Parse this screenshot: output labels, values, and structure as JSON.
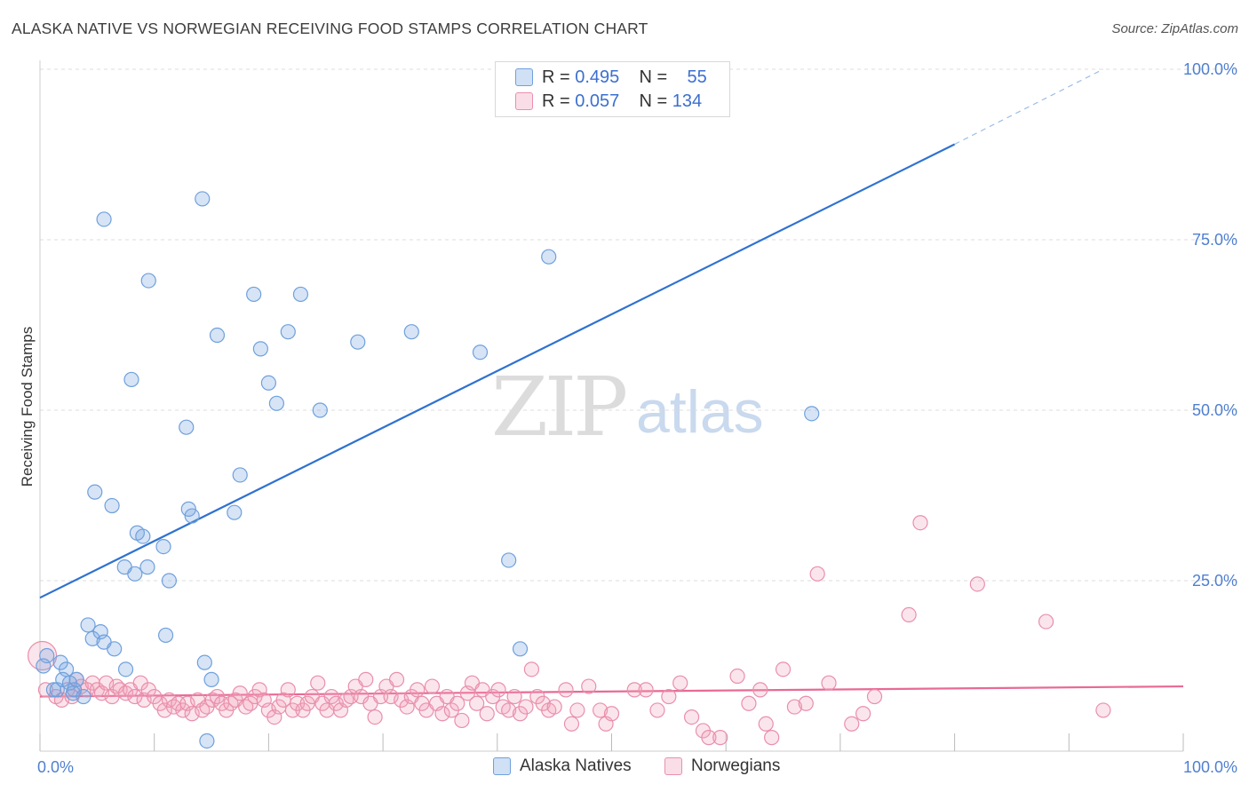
{
  "title": "ALASKA NATIVE VS NORWEGIAN RECEIVING FOOD STAMPS CORRELATION CHART",
  "source": "Source: ZipAtlas.com",
  "watermark": {
    "zip": "ZIP",
    "atlas": "atlas"
  },
  "colors": {
    "blue": "#6fa0dc",
    "blue_fill": "rgba(120,165,225,0.30)",
    "blue_line": "#2f72d0",
    "pink": "#e98fab",
    "pink_fill": "rgba(240,160,185,0.28)",
    "pink_line": "#e86a94",
    "grid": "#dcdcdc",
    "tick": "#4f7fd0"
  },
  "legend": {
    "rows": [
      {
        "r_label": "R =",
        "r_value": "0.495",
        "n_label": "N =",
        "n_value": "55"
      },
      {
        "r_label": "R =",
        "r_value": "0.057",
        "n_label": "N =",
        "n_value": "134"
      }
    ],
    "bottom": [
      {
        "label": "Alaska Natives"
      },
      {
        "label": "Norwegians"
      }
    ]
  },
  "chart_data": {
    "type": "scatter",
    "title": "ALASKA NATIVE VS NORWEGIAN RECEIVING FOOD STAMPS CORRELATION CHART",
    "xlabel": "",
    "ylabel": "Receiving Food Stamps",
    "xlim": [
      0,
      100
    ],
    "ylim": [
      0,
      100
    ],
    "x_tick_labels": [
      "0.0%",
      "100.0%"
    ],
    "y_tick_labels": [
      "25.0%",
      "50.0%",
      "75.0%",
      "100.0%"
    ],
    "y_ticks": [
      25,
      50,
      75,
      100
    ],
    "series": [
      {
        "name": "Alaska Natives",
        "r": 0.495,
        "n": 55,
        "trend": {
          "x0": 0,
          "y0": 22.5,
          "x1": 80,
          "y1": 89,
          "dash_to_x": 93,
          "dash_to_y": 100
        },
        "points": [
          [
            0.3,
            12.5
          ],
          [
            0.6,
            14
          ],
          [
            1.2,
            9
          ],
          [
            1.8,
            13
          ],
          [
            2.3,
            12
          ],
          [
            2.6,
            10
          ],
          [
            3,
            9
          ],
          [
            3.2,
            10.5
          ],
          [
            3.8,
            8
          ],
          [
            4.2,
            18.5
          ],
          [
            4.6,
            16.5
          ],
          [
            5.3,
            17.5
          ],
          [
            5.6,
            16
          ],
          [
            6.5,
            15
          ],
          [
            7.5,
            12
          ],
          [
            4.8,
            38
          ],
          [
            5.6,
            78
          ],
          [
            6.3,
            36
          ],
          [
            8,
            54.5
          ],
          [
            8.5,
            32
          ],
          [
            9,
            31.5
          ],
          [
            8.3,
            26
          ],
          [
            9.4,
            27
          ],
          [
            7.4,
            27
          ],
          [
            9.5,
            69
          ],
          [
            10.8,
            30
          ],
          [
            11,
            17
          ],
          [
            11.3,
            25
          ],
          [
            12.8,
            47.5
          ],
          [
            13,
            35.5
          ],
          [
            13.3,
            34.5
          ],
          [
            14.2,
            81
          ],
          [
            14.4,
            13
          ],
          [
            15.5,
            61
          ],
          [
            15,
            10.5
          ],
          [
            14.6,
            1.5
          ],
          [
            17,
            35
          ],
          [
            17.5,
            40.5
          ],
          [
            18.7,
            67
          ],
          [
            19.3,
            59
          ],
          [
            20,
            54
          ],
          [
            20.7,
            51
          ],
          [
            21.7,
            61.5
          ],
          [
            22.8,
            67
          ],
          [
            24.5,
            50
          ],
          [
            27.8,
            60
          ],
          [
            32.5,
            61.5
          ],
          [
            38.5,
            58.5
          ],
          [
            42,
            15
          ],
          [
            41,
            28
          ],
          [
            44.5,
            72.5
          ],
          [
            67.5,
            49.5
          ],
          [
            1.5,
            9
          ],
          [
            2,
            10.5
          ],
          [
            2.9,
            8.5
          ]
        ]
      },
      {
        "name": "Norwegians",
        "r": 0.057,
        "n": 134,
        "trend": {
          "x0": 0,
          "y0": 8,
          "x1": 100,
          "y1": 9.5
        },
        "points": [
          [
            0.2,
            14
          ],
          [
            0.5,
            9
          ],
          [
            1.4,
            8
          ],
          [
            1.9,
            7.5
          ],
          [
            2.4,
            9
          ],
          [
            2.8,
            8
          ],
          [
            3.2,
            10.5
          ],
          [
            3.6,
            9.5
          ],
          [
            4.1,
            9
          ],
          [
            4.6,
            10
          ],
          [
            5,
            9
          ],
          [
            5.4,
            8.5
          ],
          [
            5.8,
            10
          ],
          [
            6.3,
            8
          ],
          [
            6.7,
            9.5
          ],
          [
            7,
            9
          ],
          [
            7.5,
            8.5
          ],
          [
            7.9,
            9
          ],
          [
            8.3,
            8
          ],
          [
            8.8,
            10
          ],
          [
            9.1,
            7.5
          ],
          [
            9.5,
            9
          ],
          [
            10,
            8
          ],
          [
            10.5,
            7
          ],
          [
            10.9,
            6
          ],
          [
            11.3,
            7.5
          ],
          [
            11.7,
            6.5
          ],
          [
            12.1,
            7
          ],
          [
            12.5,
            6
          ],
          [
            12.9,
            7
          ],
          [
            13.3,
            5.5
          ],
          [
            13.8,
            7.5
          ],
          [
            14.2,
            6
          ],
          [
            14.6,
            6.5
          ],
          [
            15.1,
            7.5
          ],
          [
            15.5,
            8
          ],
          [
            15.9,
            7
          ],
          [
            16.3,
            6
          ],
          [
            16.7,
            7
          ],
          [
            17.1,
            7.5
          ],
          [
            17.5,
            8.5
          ],
          [
            18,
            6.5
          ],
          [
            18.4,
            7
          ],
          [
            18.8,
            8
          ],
          [
            19.2,
            9
          ],
          [
            19.6,
            7.5
          ],
          [
            20,
            6
          ],
          [
            20.5,
            5
          ],
          [
            20.9,
            6.5
          ],
          [
            21.3,
            7.5
          ],
          [
            21.7,
            9
          ],
          [
            22.1,
            6
          ],
          [
            22.5,
            7
          ],
          [
            23,
            6
          ],
          [
            23.4,
            7
          ],
          [
            23.8,
            8
          ],
          [
            24.3,
            10
          ],
          [
            24.7,
            7
          ],
          [
            25.1,
            6
          ],
          [
            25.5,
            8
          ],
          [
            25.9,
            7
          ],
          [
            26.3,
            6
          ],
          [
            26.8,
            7.5
          ],
          [
            27.2,
            8
          ],
          [
            27.6,
            9.5
          ],
          [
            28.1,
            8
          ],
          [
            28.5,
            10.5
          ],
          [
            28.9,
            7
          ],
          [
            29.3,
            5
          ],
          [
            29.8,
            8
          ],
          [
            30.3,
            9.5
          ],
          [
            30.7,
            8
          ],
          [
            31.2,
            10.5
          ],
          [
            31.6,
            7.5
          ],
          [
            32.1,
            6.5
          ],
          [
            32.5,
            8
          ],
          [
            33,
            9
          ],
          [
            33.4,
            7
          ],
          [
            33.8,
            6
          ],
          [
            34.3,
            9.5
          ],
          [
            34.7,
            7
          ],
          [
            35.2,
            5.5
          ],
          [
            35.6,
            8
          ],
          [
            36,
            6
          ],
          [
            36.5,
            7
          ],
          [
            36.9,
            4.5
          ],
          [
            37.4,
            8.5
          ],
          [
            37.8,
            10
          ],
          [
            38.2,
            7
          ],
          [
            38.7,
            9
          ],
          [
            39.1,
            5.5
          ],
          [
            39.6,
            8
          ],
          [
            40.1,
            9
          ],
          [
            40.5,
            6.5
          ],
          [
            41,
            6
          ],
          [
            41.5,
            8
          ],
          [
            42,
            5.5
          ],
          [
            42.5,
            6.5
          ],
          [
            43,
            12
          ],
          [
            43.5,
            8
          ],
          [
            44,
            7
          ],
          [
            44.5,
            6
          ],
          [
            45,
            6.5
          ],
          [
            46,
            9
          ],
          [
            46.5,
            4
          ],
          [
            47,
            6
          ],
          [
            48,
            9.5
          ],
          [
            49,
            6
          ],
          [
            49.5,
            4
          ],
          [
            50,
            5.5
          ],
          [
            52,
            9
          ],
          [
            53,
            9
          ],
          [
            54,
            6
          ],
          [
            55,
            8
          ],
          [
            56,
            10
          ],
          [
            57,
            5
          ],
          [
            58,
            3
          ],
          [
            58.5,
            2
          ],
          [
            59.5,
            2
          ],
          [
            61,
            11
          ],
          [
            62,
            7
          ],
          [
            63,
            9
          ],
          [
            63.5,
            4
          ],
          [
            64,
            2
          ],
          [
            65,
            12
          ],
          [
            66,
            6.5
          ],
          [
            67,
            7
          ],
          [
            68,
            26
          ],
          [
            69,
            10
          ],
          [
            71,
            4
          ],
          [
            72,
            5.5
          ],
          [
            73,
            8
          ],
          [
            76,
            20
          ],
          [
            77,
            33.5
          ],
          [
            82,
            24.5
          ],
          [
            88,
            19
          ],
          [
            93,
            6
          ]
        ]
      }
    ]
  }
}
